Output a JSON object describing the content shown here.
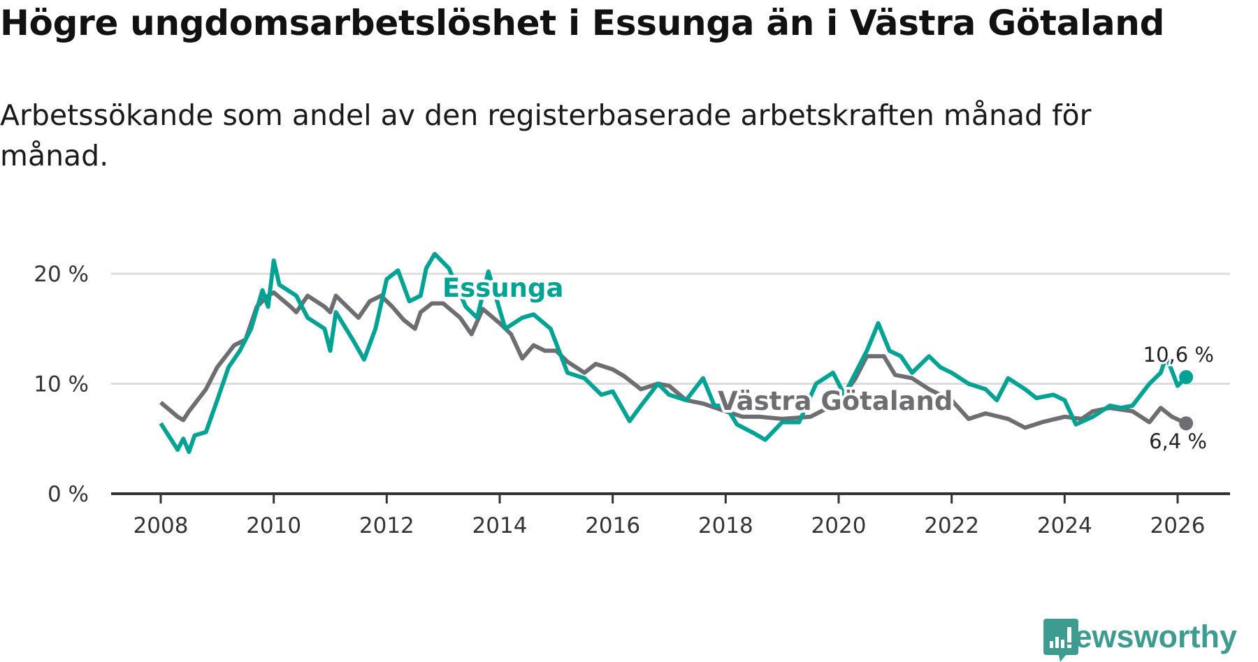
{
  "chart_data": {
    "type": "line",
    "title": "Högre ungdomsarbetslöshet i Essunga än i Västra Götaland",
    "subtitle": "Arbetssökande som andel av den registerbaserade arbetskraften månad för månad.",
    "xlabel": "",
    "ylabel": "",
    "xlim": [
      2007.1,
      2027.0
    ],
    "ylim": [
      0,
      20
    ],
    "x_ticks": [
      {
        "value": 2008,
        "label": "2008"
      },
      {
        "value": 2010,
        "label": "2010"
      },
      {
        "value": 2012,
        "label": "2012"
      },
      {
        "value": 2014,
        "label": "2014"
      },
      {
        "value": 2016,
        "label": "2016"
      },
      {
        "value": 2018,
        "label": "2018"
      },
      {
        "value": 2020,
        "label": "2020"
      },
      {
        "value": 2022,
        "label": "2022"
      },
      {
        "value": 2024,
        "label": "2024"
      },
      {
        "value": 2026,
        "label": "2026"
      }
    ],
    "y_ticks": [
      {
        "value": 0,
        "label": "0 %"
      },
      {
        "value": 10,
        "label": "10 %"
      },
      {
        "value": 20,
        "label": "20 %"
      }
    ],
    "grid": true,
    "series": [
      {
        "name": "Essunga",
        "color": "#00a293",
        "end_label": "10,6 %",
        "x": [
          2008.0,
          2008.3,
          2008.4,
          2008.5,
          2008.6,
          2008.8,
          2009.0,
          2009.2,
          2009.4,
          2009.6,
          2009.8,
          2009.9,
          2010.0,
          2010.1,
          2010.4,
          2010.6,
          2010.9,
          2011.0,
          2011.1,
          2011.4,
          2011.6,
          2011.8,
          2012.0,
          2012.2,
          2012.4,
          2012.6,
          2012.7,
          2012.85,
          2013.1,
          2013.4,
          2013.6,
          2013.8,
          2014.1,
          2014.4,
          2014.6,
          2014.9,
          2015.2,
          2015.5,
          2015.8,
          2016.0,
          2016.3,
          2016.5,
          2016.8,
          2017.0,
          2017.3,
          2017.6,
          2017.8,
          2018.0,
          2018.2,
          2018.5,
          2018.7,
          2019.0,
          2019.3,
          2019.6,
          2019.9,
          2020.1,
          2020.3,
          2020.5,
          2020.7,
          2020.9,
          2021.1,
          2021.3,
          2021.6,
          2021.8,
          2022.0,
          2022.3,
          2022.6,
          2022.8,
          2023.0,
          2023.3,
          2023.5,
          2023.8,
          2024.0,
          2024.2,
          2024.5,
          2024.8,
          2025.0,
          2025.2,
          2025.5,
          2025.7,
          2025.8,
          2026.0,
          2026.15
        ],
        "values": [
          6.4,
          4.0,
          5.0,
          3.8,
          5.3,
          5.6,
          8.5,
          11.5,
          13.0,
          15.0,
          18.5,
          17.0,
          21.2,
          19.0,
          18.0,
          16.0,
          15.0,
          13.0,
          16.5,
          14.0,
          12.2,
          15.0,
          19.5,
          20.3,
          17.5,
          18.0,
          20.5,
          21.8,
          20.5,
          17.0,
          16.0,
          20.2,
          15.0,
          16.0,
          16.3,
          15.0,
          11.0,
          10.5,
          9.0,
          9.3,
          6.6,
          8.0,
          10.0,
          9.0,
          8.5,
          10.5,
          8.0,
          8.0,
          6.3,
          5.5,
          4.9,
          6.5,
          6.5,
          10.0,
          11.0,
          9.0,
          11.0,
          13.0,
          15.5,
          13.0,
          12.5,
          11.0,
          12.5,
          11.5,
          11.0,
          10.0,
          9.5,
          8.5,
          10.5,
          9.5,
          8.7,
          9.0,
          8.5,
          6.3,
          7.0,
          8.0,
          7.8,
          8.0,
          10.0,
          11.0,
          12.5,
          9.8,
          10.6
        ]
      },
      {
        "name": "Västra Götaland",
        "color": "#6e6d72",
        "end_label": "6,4 %",
        "x": [
          2008.0,
          2008.3,
          2008.4,
          2008.5,
          2008.8,
          2009.0,
          2009.3,
          2009.5,
          2009.7,
          2009.9,
          2010.0,
          2010.3,
          2010.4,
          2010.6,
          2010.9,
          2011.0,
          2011.1,
          2011.3,
          2011.5,
          2011.7,
          2011.9,
          2012.1,
          2012.3,
          2012.5,
          2012.6,
          2012.8,
          2013.0,
          2013.3,
          2013.5,
          2013.7,
          2014.0,
          2014.2,
          2014.4,
          2014.6,
          2014.8,
          2015.0,
          2015.2,
          2015.5,
          2015.7,
          2016.0,
          2016.2,
          2016.5,
          2016.8,
          2017.0,
          2017.3,
          2017.6,
          2018.0,
          2018.3,
          2018.6,
          2019.0,
          2019.5,
          2020.0,
          2020.3,
          2020.5,
          2020.8,
          2021.0,
          2021.3,
          2021.6,
          2022.0,
          2022.3,
          2022.6,
          2023.0,
          2023.3,
          2023.6,
          2024.0,
          2024.3,
          2024.5,
          2024.8,
          2025.2,
          2025.5,
          2025.7,
          2025.9,
          2026.15
        ],
        "values": [
          8.3,
          7.0,
          6.7,
          7.5,
          9.5,
          11.5,
          13.5,
          14.0,
          17.0,
          18.0,
          18.3,
          17.0,
          16.5,
          18.0,
          17.0,
          16.5,
          18.0,
          17.0,
          16.0,
          17.5,
          18.0,
          17.0,
          15.8,
          15.0,
          16.5,
          17.3,
          17.3,
          16.0,
          14.5,
          16.8,
          15.5,
          14.5,
          12.3,
          13.5,
          13.0,
          13.0,
          12.0,
          11.0,
          11.8,
          11.3,
          10.7,
          9.5,
          10.0,
          9.8,
          8.5,
          8.2,
          7.5,
          7.0,
          7.0,
          6.8,
          7.0,
          8.3,
          10.5,
          12.5,
          12.5,
          10.8,
          10.5,
          9.5,
          8.5,
          6.8,
          7.3,
          6.8,
          6.0,
          6.5,
          7.0,
          6.8,
          7.5,
          7.8,
          7.5,
          6.5,
          7.8,
          7.0,
          6.4
        ]
      }
    ],
    "annotations": [
      {
        "text": "Essunga",
        "series": "Essunga"
      },
      {
        "text": "Västra Götaland",
        "series": "Västra Götaland"
      }
    ]
  },
  "branding": {
    "name": "Newsworthy",
    "color": "#3e9b90"
  }
}
